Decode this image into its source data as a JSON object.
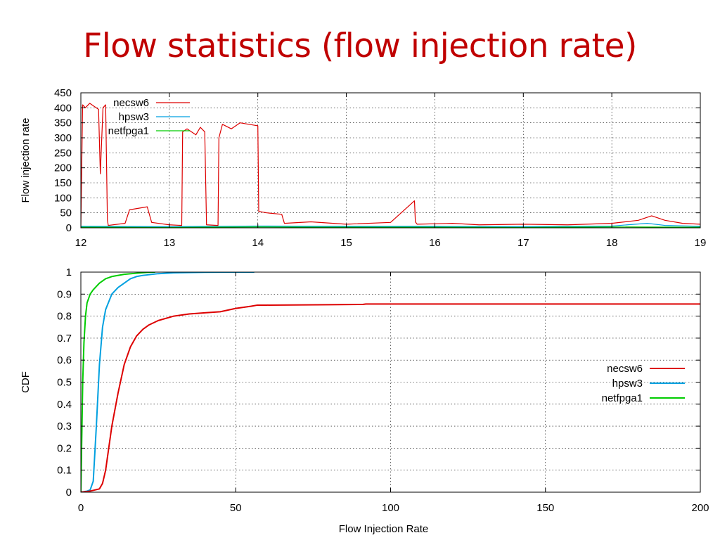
{
  "slide": {
    "title": "Flow statistics (flow injection rate)"
  },
  "chart_data": [
    {
      "type": "line",
      "xlabel": "",
      "ylabel": "Flow injection rate",
      "xlim": [
        12,
        19
      ],
      "ylim": [
        0,
        450
      ],
      "x_ticks": [
        12,
        13,
        14,
        15,
        16,
        17,
        18,
        19
      ],
      "y_ticks": [
        0,
        50,
        100,
        150,
        200,
        250,
        300,
        350,
        400,
        450
      ],
      "grid": true,
      "legend": "top-left",
      "series": [
        {
          "name": "necsw6",
          "color": "#dd0000",
          "x": [
            12.0,
            12.02,
            12.05,
            12.1,
            12.15,
            12.2,
            12.22,
            12.25,
            12.28,
            12.3,
            12.31,
            12.5,
            12.55,
            12.75,
            12.8,
            13.0,
            13.14,
            13.15,
            13.2,
            13.3,
            13.35,
            13.4,
            13.42,
            13.55,
            13.56,
            13.6,
            13.7,
            13.8,
            13.9,
            14.0,
            14.01,
            14.1,
            14.27,
            14.3,
            14.6,
            15.0,
            15.5,
            15.77,
            15.78,
            15.8,
            16.2,
            16.5,
            17.0,
            17.5,
            18.0,
            18.3,
            18.45,
            18.6,
            18.8,
            19.0
          ],
          "y": [
            5,
            410,
            400,
            415,
            405,
            395,
            180,
            400,
            410,
            25,
            8,
            15,
            60,
            70,
            18,
            10,
            8,
            320,
            330,
            310,
            335,
            320,
            10,
            8,
            300,
            345,
            330,
            350,
            345,
            340,
            55,
            50,
            45,
            15,
            20,
            12,
            18,
            90,
            20,
            12,
            15,
            10,
            12,
            10,
            15,
            25,
            40,
            25,
            15,
            12
          ]
        },
        {
          "name": "hpsw3",
          "color": "#00a0e0",
          "x": [
            12,
            13,
            14,
            15,
            16,
            17,
            18,
            18.4,
            18.6,
            19
          ],
          "y": [
            5,
            4,
            6,
            5,
            5,
            4,
            6,
            15,
            8,
            5
          ]
        },
        {
          "name": "netfpga1",
          "color": "#00cc00",
          "x": [
            12,
            13,
            14,
            15,
            16,
            17,
            18,
            19
          ],
          "y": [
            2,
            2,
            3,
            2,
            2,
            2,
            3,
            2
          ]
        }
      ]
    },
    {
      "type": "line",
      "xlabel": "Flow Injection Rate",
      "ylabel": "CDF",
      "xlim": [
        0,
        200
      ],
      "ylim": [
        0,
        1
      ],
      "x_ticks": [
        0,
        50,
        100,
        150,
        200
      ],
      "y_ticks": [
        0,
        0.1,
        0.2,
        0.3,
        0.4,
        0.5,
        0.6,
        0.7,
        0.8,
        0.9,
        1
      ],
      "grid": true,
      "legend": "right",
      "series": [
        {
          "name": "necsw6",
          "color": "#dd0000",
          "x": [
            0,
            3,
            6,
            7,
            8,
            9,
            10,
            12,
            14,
            16,
            18,
            20,
            22,
            25,
            30,
            35,
            40,
            45,
            50,
            55,
            57,
            60,
            80,
            91,
            92,
            100,
            150,
            200
          ],
          "y": [
            0,
            0.005,
            0.015,
            0.04,
            0.1,
            0.2,
            0.3,
            0.45,
            0.58,
            0.66,
            0.71,
            0.74,
            0.76,
            0.78,
            0.8,
            0.81,
            0.815,
            0.82,
            0.835,
            0.845,
            0.85,
            0.85,
            0.852,
            0.853,
            0.855,
            0.855,
            0.855,
            0.855
          ]
        },
        {
          "name": "hpsw3",
          "color": "#00a0e0",
          "x": [
            0,
            2,
            3,
            4,
            5,
            6,
            7,
            8,
            10,
            12,
            14,
            16,
            18,
            20,
            25,
            30,
            40,
            50,
            56
          ],
          "y": [
            0,
            0.005,
            0.01,
            0.05,
            0.3,
            0.58,
            0.75,
            0.83,
            0.9,
            0.93,
            0.95,
            0.97,
            0.98,
            0.985,
            0.993,
            0.997,
            0.999,
            1.0,
            1.0
          ]
        },
        {
          "name": "netfpga1",
          "color": "#00cc00",
          "x": [
            0,
            0.3,
            0.6,
            1,
            1.5,
            2,
            3,
            4,
            6,
            8,
            10,
            14,
            18,
            22,
            24
          ],
          "y": [
            0,
            0.25,
            0.5,
            0.68,
            0.8,
            0.86,
            0.9,
            0.92,
            0.95,
            0.97,
            0.98,
            0.99,
            0.995,
            0.999,
            1.0
          ]
        }
      ]
    }
  ]
}
